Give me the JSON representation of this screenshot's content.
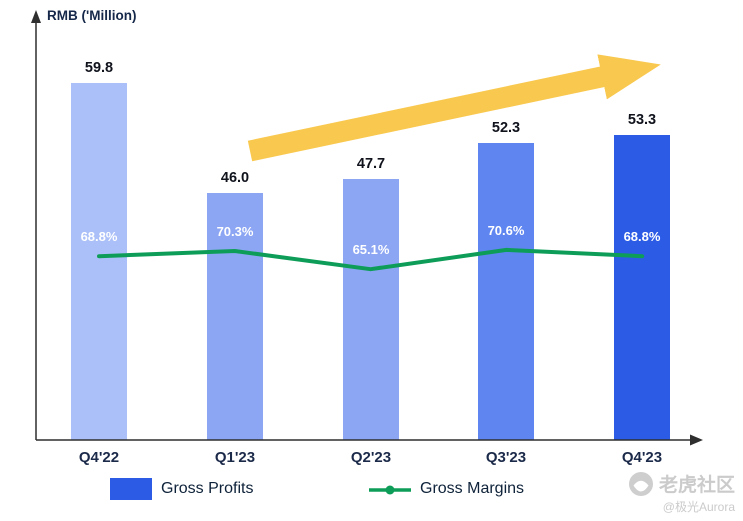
{
  "chart_data": {
    "type": "bar",
    "title": "",
    "xlabel": "",
    "ylabel": "RMB ('Million)",
    "categories": [
      "Q4'22",
      "Q1'23",
      "Q2'23",
      "Q3'23",
      "Q4'23"
    ],
    "series": [
      {
        "name": "Gross Profits",
        "chart_type": "bar",
        "unit": "RMB Million",
        "values": [
          59.8,
          46.0,
          47.7,
          52.3,
          53.3
        ],
        "labels": [
          "59.8",
          "46.0",
          "47.7",
          "52.3",
          "53.3"
        ],
        "colors": [
          "#ABC0F8",
          "#8CA6F3",
          "#8CA6F3",
          "#5F86F0",
          "#2C5CE6"
        ]
      },
      {
        "name": "Gross Margins",
        "chart_type": "line",
        "unit": "%",
        "values": [
          68.8,
          70.3,
          65.1,
          70.6,
          68.8
        ],
        "labels": [
          "68.8%",
          "70.3%",
          "65.1%",
          "70.6%",
          "68.8%"
        ],
        "color": "#0E9D58"
      }
    ],
    "ylim": [
      15,
      62
    ],
    "grid": false,
    "legend_position": "bottom",
    "annotations": [
      {
        "type": "trend-arrow",
        "direction": "up-right",
        "color": "#F9C84E"
      }
    ]
  },
  "watermark": {
    "brand": "老虎社区",
    "handle": "@极光Aurora"
  }
}
